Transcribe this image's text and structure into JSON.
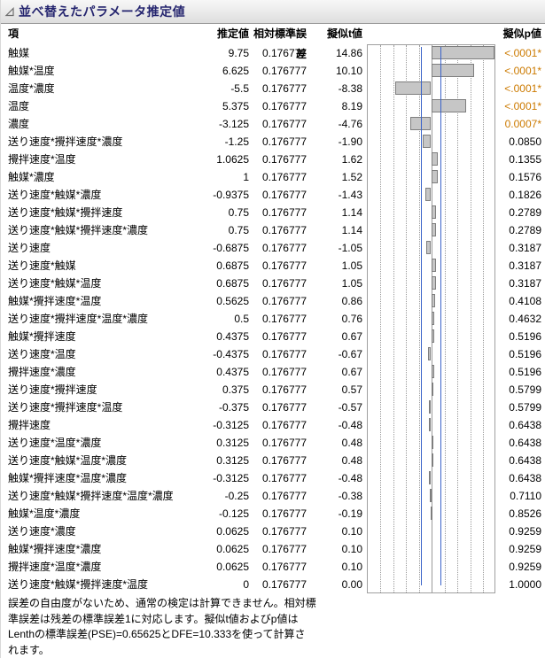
{
  "title": "並べ替えたパラメータ推定値",
  "columns": {
    "term": "項",
    "estimate": "推定値",
    "stderr": "相対標準誤差",
    "t": "擬似t値",
    "p": "擬似p値"
  },
  "colors": {
    "significant_p": "#cc7a00",
    "threshold_line": "#3b64c9",
    "bar_fill": "#c6c6c6",
    "bar_border": "#7e7e7e",
    "title_text": "#24246e"
  },
  "footnote": "誤差の自由度がないため、通常の検定は計算できません。相対標\n準誤差は残差の標準誤差1に対応します。擬似t値およびp値は\nLenthの標準誤差(PSE)=0.65625とDFE=10.333を使って計算さ\nれます。",
  "chart_data": {
    "type": "bar",
    "orientation": "horizontal",
    "xlabel": "擬似t値",
    "xmin": -15,
    "xmax": 15,
    "grid_step": 3,
    "threshold": 2.22,
    "categories": [
      "触媒",
      "触媒*温度",
      "温度*濃度",
      "温度",
      "濃度",
      "送り速度*攪拌速度*濃度",
      "攪拌速度*温度",
      "触媒*濃度",
      "送り速度*触媒*濃度",
      "送り速度*触媒*攪拌速度",
      "送り速度*触媒*攪拌速度*濃度",
      "送り速度",
      "送り速度*触媒",
      "送り速度*触媒*温度",
      "触媒*攪拌速度*温度",
      "送り速度*攪拌速度*温度*濃度",
      "触媒*攪拌速度",
      "送り速度*温度",
      "攪拌速度*濃度",
      "送り速度*攪拌速度",
      "送り速度*攪拌速度*温度",
      "攪拌速度",
      "送り速度*温度*濃度",
      "送り速度*触媒*温度*濃度",
      "触媒*攪拌速度*温度*濃度",
      "送り速度*触媒*攪拌速度*温度*濃度",
      "触媒*温度*濃度",
      "送り速度*濃度",
      "触媒*攪拌速度*濃度",
      "攪拌速度*温度*濃度",
      "送り速度*触媒*攪拌速度*温度"
    ],
    "values": [
      14.86,
      10.1,
      -8.38,
      8.19,
      -4.76,
      -1.9,
      1.62,
      1.52,
      -1.43,
      1.14,
      1.14,
      -1.05,
      1.05,
      1.05,
      0.86,
      0.76,
      0.67,
      -0.67,
      0.67,
      0.57,
      -0.57,
      -0.48,
      0.48,
      0.48,
      -0.48,
      -0.38,
      -0.19,
      0.1,
      0.1,
      0.1,
      0.0
    ]
  },
  "rows": [
    {
      "term": "触媒",
      "est": "9.75",
      "se": "0.176777",
      "t": "14.86",
      "p": "<.0001*",
      "sig": true
    },
    {
      "term": "触媒*温度",
      "est": "6.625",
      "se": "0.176777",
      "t": "10.10",
      "p": "<.0001*",
      "sig": true
    },
    {
      "term": "温度*濃度",
      "est": "-5.5",
      "se": "0.176777",
      "t": "-8.38",
      "p": "<.0001*",
      "sig": true
    },
    {
      "term": "温度",
      "est": "5.375",
      "se": "0.176777",
      "t": "8.19",
      "p": "<.0001*",
      "sig": true
    },
    {
      "term": "濃度",
      "est": "-3.125",
      "se": "0.176777",
      "t": "-4.76",
      "p": "0.0007*",
      "sig": true
    },
    {
      "term": "送り速度*攪拌速度*濃度",
      "est": "-1.25",
      "se": "0.176777",
      "t": "-1.90",
      "p": "0.0850",
      "sig": false
    },
    {
      "term": "攪拌速度*温度",
      "est": "1.0625",
      "se": "0.176777",
      "t": "1.62",
      "p": "0.1355",
      "sig": false
    },
    {
      "term": "触媒*濃度",
      "est": "1",
      "se": "0.176777",
      "t": "1.52",
      "p": "0.1576",
      "sig": false
    },
    {
      "term": "送り速度*触媒*濃度",
      "est": "-0.9375",
      "se": "0.176777",
      "t": "-1.43",
      "p": "0.1826",
      "sig": false
    },
    {
      "term": "送り速度*触媒*攪拌速度",
      "est": "0.75",
      "se": "0.176777",
      "t": "1.14",
      "p": "0.2789",
      "sig": false
    },
    {
      "term": "送り速度*触媒*攪拌速度*濃度",
      "est": "0.75",
      "se": "0.176777",
      "t": "1.14",
      "p": "0.2789",
      "sig": false
    },
    {
      "term": "送り速度",
      "est": "-0.6875",
      "se": "0.176777",
      "t": "-1.05",
      "p": "0.3187",
      "sig": false
    },
    {
      "term": "送り速度*触媒",
      "est": "0.6875",
      "se": "0.176777",
      "t": "1.05",
      "p": "0.3187",
      "sig": false
    },
    {
      "term": "送り速度*触媒*温度",
      "est": "0.6875",
      "se": "0.176777",
      "t": "1.05",
      "p": "0.3187",
      "sig": false
    },
    {
      "term": "触媒*攪拌速度*温度",
      "est": "0.5625",
      "se": "0.176777",
      "t": "0.86",
      "p": "0.4108",
      "sig": false
    },
    {
      "term": "送り速度*攪拌速度*温度*濃度",
      "est": "0.5",
      "se": "0.176777",
      "t": "0.76",
      "p": "0.4632",
      "sig": false
    },
    {
      "term": "触媒*攪拌速度",
      "est": "0.4375",
      "se": "0.176777",
      "t": "0.67",
      "p": "0.5196",
      "sig": false
    },
    {
      "term": "送り速度*温度",
      "est": "-0.4375",
      "se": "0.176777",
      "t": "-0.67",
      "p": "0.5196",
      "sig": false
    },
    {
      "term": "攪拌速度*濃度",
      "est": "0.4375",
      "se": "0.176777",
      "t": "0.67",
      "p": "0.5196",
      "sig": false
    },
    {
      "term": "送り速度*攪拌速度",
      "est": "0.375",
      "se": "0.176777",
      "t": "0.57",
      "p": "0.5799",
      "sig": false
    },
    {
      "term": "送り速度*攪拌速度*温度",
      "est": "-0.375",
      "se": "0.176777",
      "t": "-0.57",
      "p": "0.5799",
      "sig": false
    },
    {
      "term": "攪拌速度",
      "est": "-0.3125",
      "se": "0.176777",
      "t": "-0.48",
      "p": "0.6438",
      "sig": false
    },
    {
      "term": "送り速度*温度*濃度",
      "est": "0.3125",
      "se": "0.176777",
      "t": "0.48",
      "p": "0.6438",
      "sig": false
    },
    {
      "term": "送り速度*触媒*温度*濃度",
      "est": "0.3125",
      "se": "0.176777",
      "t": "0.48",
      "p": "0.6438",
      "sig": false
    },
    {
      "term": "触媒*攪拌速度*温度*濃度",
      "est": "-0.3125",
      "se": "0.176777",
      "t": "-0.48",
      "p": "0.6438",
      "sig": false
    },
    {
      "term": "送り速度*触媒*攪拌速度*温度*濃度",
      "est": "-0.25",
      "se": "0.176777",
      "t": "-0.38",
      "p": "0.7110",
      "sig": false
    },
    {
      "term": "触媒*温度*濃度",
      "est": "-0.125",
      "se": "0.176777",
      "t": "-0.19",
      "p": "0.8526",
      "sig": false
    },
    {
      "term": "送り速度*濃度",
      "est": "0.0625",
      "se": "0.176777",
      "t": "0.10",
      "p": "0.9259",
      "sig": false
    },
    {
      "term": "触媒*攪拌速度*濃度",
      "est": "0.0625",
      "se": "0.176777",
      "t": "0.10",
      "p": "0.9259",
      "sig": false
    },
    {
      "term": "攪拌速度*温度*濃度",
      "est": "0.0625",
      "se": "0.176777",
      "t": "0.10",
      "p": "0.9259",
      "sig": false
    },
    {
      "term": "送り速度*触媒*攪拌速度*温度",
      "est": "0",
      "se": "0.176777",
      "t": "0.00",
      "p": "1.0000",
      "sig": false
    }
  ]
}
